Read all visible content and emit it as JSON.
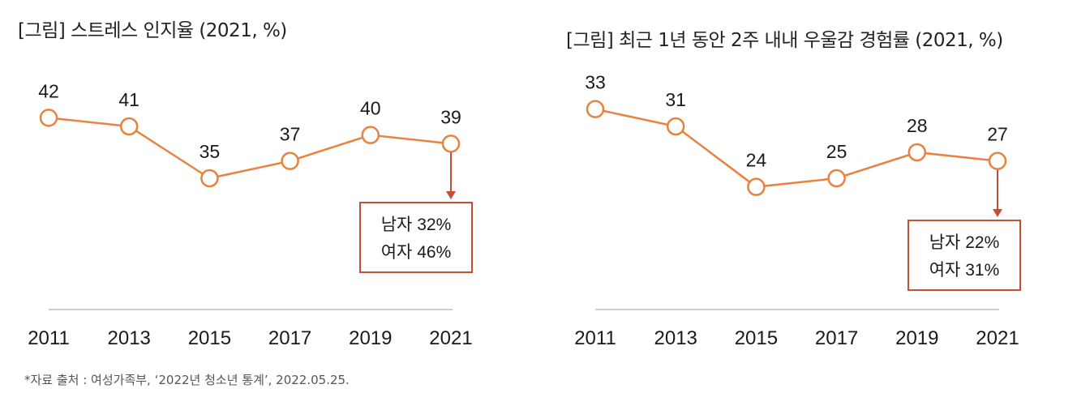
{
  "charts": [
    {
      "id": "left",
      "title": "[그림] 스트레스 인지율 (2021, %)",
      "callout": {
        "line1": "남자 32%",
        "line2": "여자 46%"
      }
    },
    {
      "id": "right",
      "title": "[그림] 최근 1년 동안 2주 내내 우울감 경험률 (2021, %)",
      "callout": {
        "line1": "남자 22%",
        "line2": "여자 31%"
      }
    }
  ],
  "chart_data": [
    {
      "type": "line",
      "title": "[그림] 스트레스 인지율 (2021, %)",
      "categories": [
        "2011",
        "2013",
        "2015",
        "2017",
        "2019",
        "2021"
      ],
      "values": [
        42,
        41,
        35,
        37,
        40,
        39
      ],
      "ylim": [
        20,
        50
      ],
      "xlabel": "",
      "ylabel": "",
      "annotations": [
        "남자 32%",
        "여자 46%"
      ]
    },
    {
      "type": "line",
      "title": "[그림] 최근 1년 동안 2주 내내 우울감 경험률 (2021, %)",
      "categories": [
        "2011",
        "2013",
        "2015",
        "2017",
        "2019",
        "2021"
      ],
      "values": [
        33,
        31,
        24,
        25,
        28,
        27
      ],
      "ylim": [
        10,
        40
      ],
      "xlabel": "",
      "ylabel": "",
      "annotations": [
        "남자 22%",
        "여자 31%"
      ]
    }
  ],
  "colors": {
    "line": "#e8823f",
    "callout_border": "#c0503a",
    "arrow": "#c0503a",
    "axis": "#bdbdbd"
  },
  "footnote": "*자료 출처 : 여성가족부, ‘2022년 청소년 통계’, 2022.05.25."
}
